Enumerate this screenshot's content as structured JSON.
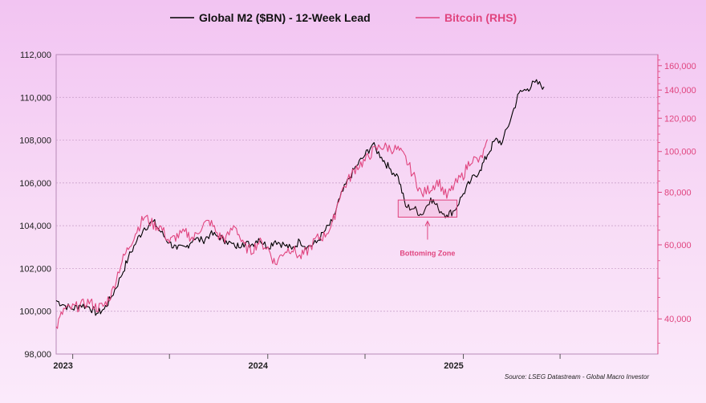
{
  "chart_data": {
    "type": "line",
    "legend": {
      "position": "top",
      "series_labels": [
        "Global M2 ($BN) - 12-Week Lead",
        "Bitcoin (RHS)"
      ]
    },
    "x_ticks": [
      "2023",
      "2024",
      "2025"
    ],
    "x_range": [
      "2022-12-01",
      "2025-12-31"
    ],
    "y_left": {
      "range": [
        98000,
        112000
      ],
      "ticks": [
        "98,000",
        "100,000",
        "102,000",
        "104,000",
        "106,000",
        "108,000",
        "110,000",
        "112,000"
      ],
      "tick_values": [
        98000,
        100000,
        102000,
        104000,
        106000,
        108000,
        110000,
        112000
      ]
    },
    "y_right": {
      "scale": "log",
      "range": [
        33000,
        170000
      ],
      "ticks": [
        "40,000",
        "60,000",
        "80,000",
        "100,000",
        "120,000",
        "140,000",
        "160,000"
      ],
      "tick_values": [
        40000,
        60000,
        80000,
        100000,
        120000,
        140000,
        160000
      ]
    },
    "grid": true,
    "series": [
      {
        "name": "Global M2 ($BN) - 12-Week Lead",
        "axis": "left",
        "color": "#000000",
        "points": [
          [
            "2022-12-01",
            100500
          ],
          [
            "2022-12-15",
            100300
          ],
          [
            "2023-01-01",
            100100
          ],
          [
            "2023-01-15",
            100300
          ],
          [
            "2023-02-01",
            100200
          ],
          [
            "2023-02-15",
            99900
          ],
          [
            "2023-03-01",
            100100
          ],
          [
            "2023-03-15",
            100700
          ],
          [
            "2023-04-01",
            101600
          ],
          [
            "2023-04-15",
            102500
          ],
          [
            "2023-05-01",
            103300
          ],
          [
            "2023-05-15",
            103900
          ],
          [
            "2023-06-01",
            104200
          ],
          [
            "2023-06-15",
            103700
          ],
          [
            "2023-07-01",
            103200
          ],
          [
            "2023-07-15",
            102900
          ],
          [
            "2023-08-01",
            103000
          ],
          [
            "2023-08-15",
            103400
          ],
          [
            "2023-09-01",
            103300
          ],
          [
            "2023-09-15",
            103600
          ],
          [
            "2023-10-01",
            103500
          ],
          [
            "2023-10-15",
            103300
          ],
          [
            "2023-11-01",
            103000
          ],
          [
            "2023-11-15",
            103200
          ],
          [
            "2023-12-01",
            103100
          ],
          [
            "2023-12-15",
            103400
          ],
          [
            "2024-01-01",
            103000
          ],
          [
            "2024-01-15",
            103300
          ],
          [
            "2024-02-01",
            103100
          ],
          [
            "2024-02-15",
            102900
          ],
          [
            "2024-03-01",
            103300
          ],
          [
            "2024-03-15",
            103000
          ],
          [
            "2024-04-01",
            103200
          ],
          [
            "2024-04-15",
            103700
          ],
          [
            "2024-05-01",
            104200
          ],
          [
            "2024-05-15",
            105300
          ],
          [
            "2024-06-01",
            106200
          ],
          [
            "2024-06-15",
            106800
          ],
          [
            "2024-07-01",
            107300
          ],
          [
            "2024-07-15",
            107800
          ],
          [
            "2024-08-01",
            107200
          ],
          [
            "2024-08-15",
            106700
          ],
          [
            "2024-09-01",
            106300
          ],
          [
            "2024-09-15",
            104900
          ],
          [
            "2024-10-01",
            104800
          ],
          [
            "2024-10-15",
            104500
          ],
          [
            "2024-11-01",
            105300
          ],
          [
            "2024-11-15",
            104800
          ],
          [
            "2024-12-01",
            104500
          ],
          [
            "2024-12-15",
            104700
          ],
          [
            "2025-01-01",
            105500
          ],
          [
            "2025-01-15",
            106100
          ],
          [
            "2025-02-01",
            106600
          ],
          [
            "2025-02-15",
            107300
          ],
          [
            "2025-03-01",
            108000
          ],
          [
            "2025-03-15",
            107900
          ],
          [
            "2025-04-01",
            109100
          ],
          [
            "2025-04-15",
            110200
          ],
          [
            "2025-05-01",
            110400
          ],
          [
            "2025-05-15",
            110700
          ],
          [
            "2025-06-01",
            110500
          ]
        ]
      },
      {
        "name": "Bitcoin (RHS)",
        "axis": "right",
        "color": "#e0457f",
        "points": [
          [
            "2022-12-01",
            38000
          ],
          [
            "2022-12-15",
            42000
          ],
          [
            "2023-01-01",
            42500
          ],
          [
            "2023-01-15",
            43000
          ],
          [
            "2023-02-01",
            44000
          ],
          [
            "2023-02-15",
            42500
          ],
          [
            "2023-03-01",
            43000
          ],
          [
            "2023-03-15",
            46000
          ],
          [
            "2023-04-01",
            54000
          ],
          [
            "2023-04-15",
            59000
          ],
          [
            "2023-05-01",
            65000
          ],
          [
            "2023-05-15",
            70000
          ],
          [
            "2023-06-01",
            67000
          ],
          [
            "2023-06-15",
            66000
          ],
          [
            "2023-07-01",
            61000
          ],
          [
            "2023-07-15",
            63000
          ],
          [
            "2023-08-01",
            64000
          ],
          [
            "2023-08-15",
            62000
          ],
          [
            "2023-09-01",
            67000
          ],
          [
            "2023-09-15",
            68000
          ],
          [
            "2023-10-01",
            63000
          ],
          [
            "2023-10-15",
            62000
          ],
          [
            "2023-11-01",
            67000
          ],
          [
            "2023-11-15",
            60000
          ],
          [
            "2023-12-01",
            58000
          ],
          [
            "2023-12-15",
            61000
          ],
          [
            "2024-01-01",
            59000
          ],
          [
            "2024-01-15",
            54000
          ],
          [
            "2024-02-01",
            58000
          ],
          [
            "2024-02-15",
            59000
          ],
          [
            "2024-03-01",
            56000
          ],
          [
            "2024-03-15",
            58000
          ],
          [
            "2024-04-01",
            62000
          ],
          [
            "2024-04-15",
            63000
          ],
          [
            "2024-05-01",
            67000
          ],
          [
            "2024-05-15",
            79000
          ],
          [
            "2024-06-01",
            86000
          ],
          [
            "2024-06-15",
            92000
          ],
          [
            "2024-07-01",
            95000
          ],
          [
            "2024-07-15",
            100000
          ],
          [
            "2024-08-01",
            103000
          ],
          [
            "2024-08-15",
            102000
          ],
          [
            "2024-09-01",
            101000
          ],
          [
            "2024-09-15",
            96000
          ],
          [
            "2024-10-01",
            87000
          ],
          [
            "2024-10-15",
            79000
          ],
          [
            "2024-11-01",
            82000
          ],
          [
            "2024-11-15",
            85000
          ],
          [
            "2024-12-01",
            78000
          ],
          [
            "2024-12-15",
            83000
          ],
          [
            "2025-01-01",
            88000
          ],
          [
            "2025-01-15",
            96000
          ],
          [
            "2025-02-01",
            95000
          ],
          [
            "2025-02-15",
            104000
          ]
        ]
      }
    ],
    "annotations": [
      {
        "text": "Bottoming Zone",
        "from": "2024-09-01",
        "to": "2024-12-20",
        "y_left": [
          104400,
          105200
        ]
      }
    ],
    "source": "Source: LSEG Datastream - Global Macro Investor"
  }
}
